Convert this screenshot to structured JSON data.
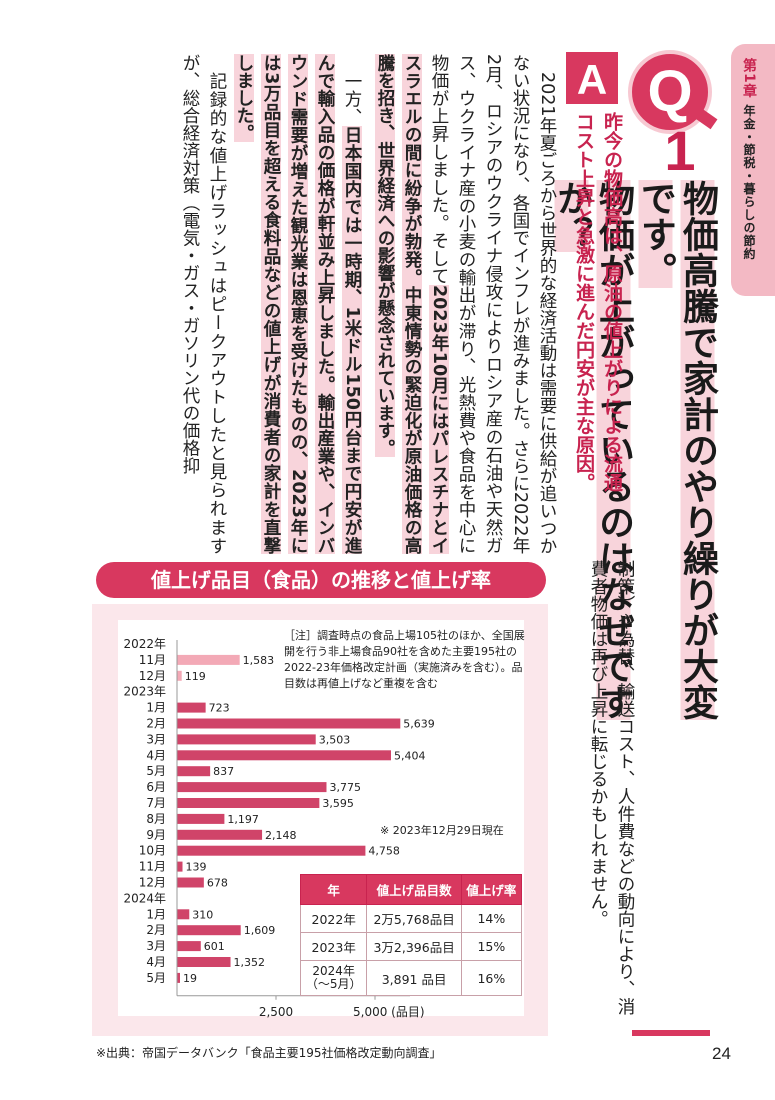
{
  "chapter": {
    "number": "第1章",
    "title": "年金・節税・暮らしの節約"
  },
  "question": {
    "label": "Q",
    "number": "1",
    "title_lines": [
      "物価高騰で家計のやり繰りが大変です。",
      "物価が上がっているのはなぜですか？"
    ]
  },
  "answer": {
    "label": "A",
    "summary_lines": [
      "昨今の物価高は、原油の値上がりによる流通",
      "コスト上昇と急激に進んだ円安が主な原因。"
    ]
  },
  "body": {
    "p1": "2021年夏ごろから世界的な経済活動は需要に供給が追いつかない状況になり、各国でインフレが進みました。さらに2022年2月、ロシアのウクライナ侵攻によりロシア産の石油や天然ガス、ウクライナ産の小麦の輸出が滞り、光熱費や食品を中心に物価が上昇しました。そして",
    "p1_hl": "2023年10月にはパレスチナとイスラエルの間に紛争が勃発。中東情勢の緊迫化が原油価格の高騰を招き、世界経済への影響が懸念されています。",
    "p2_a": "一方、",
    "p2_hl": "日本国内では一時期、1米ドル150円台まで円安が進んで輸入品の価格が軒並み上昇しました。輸出産業や、インバウンド需要が増えた観光業は恩恵を受けたものの、2023年には3万品目を超える食料品などの値上げが消費者の家計を直撃しました。",
    "p3": "記録的な値上げラッシュはピークアウトしたと見られますが、総合経済対策（電気・ガス・ガソリン代の価格抑",
    "p3_cont": "制策）や為替、輸送コスト、人件費などの動向により、消費者物価は再び上昇に転じるかもしれません。"
  },
  "chart": {
    "title": "値上げ品目（食品）の推移と値上げ率",
    "note": "［注］調査時点の食品上場105社のほか、全国展開を行う非上場食品90社を含めた主要195社の2022-23年価格改定計画（実施済みを含む）。品目数は再値上げなど重複を含む",
    "as_of": "※ 2023年12月29日現在",
    "table": {
      "headers": [
        "年",
        "値上げ品目数",
        "値上げ率"
      ],
      "rows": [
        {
          "year": "2022年",
          "items": "2万5,768品目",
          "rate": "14%"
        },
        {
          "year": "2023年",
          "items": "3万2,396品目",
          "rate": "15%"
        },
        {
          "year": "2024年",
          "year_sub": "（〜5月）",
          "items": "3,891 品目",
          "rate": "16%"
        }
      ]
    }
  },
  "chart_data": {
    "type": "bar",
    "orientation": "horizontal",
    "title": "値上げ品目（食品）の推移と値上げ率",
    "year_groups": [
      {
        "label": "2022年",
        "before_index": 0
      },
      {
        "label": "2023年",
        "before_index": 2
      },
      {
        "label": "2024年",
        "before_index": 14
      }
    ],
    "categories": [
      "11月",
      "12月",
      "1月",
      "2月",
      "3月",
      "4月",
      "5月",
      "6月",
      "7月",
      "8月",
      "9月",
      "10月",
      "11月",
      "12月",
      "1月",
      "2月",
      "3月",
      "4月",
      "5月"
    ],
    "values": [
      1583,
      119,
      723,
      5639,
      3503,
      5404,
      837,
      3775,
      3595,
      1197,
      2148,
      4758,
      139,
      678,
      310,
      1609,
      601,
      1352,
      19
    ],
    "value_labels": [
      "1,583",
      "119",
      "723",
      "5,639",
      "3,503",
      "5,404",
      "837",
      "3,775",
      "3,595",
      "1,197",
      "2,148",
      "4,758",
      "139",
      "678",
      "310",
      "1,609",
      "601",
      "1,352",
      "19"
    ],
    "xlim": [
      0,
      6000
    ],
    "x_ticks": [
      2500,
      5000
    ],
    "x_tick_labels": [
      "2,500",
      "5,000 (品目)"
    ],
    "highlight_color": "#f3a9b6",
    "bar_color": "#c8234f",
    "grid": false
  },
  "source": "※出典：帝国データバンク「食品主要195社価格改定動向調査」",
  "page_number": "24"
}
